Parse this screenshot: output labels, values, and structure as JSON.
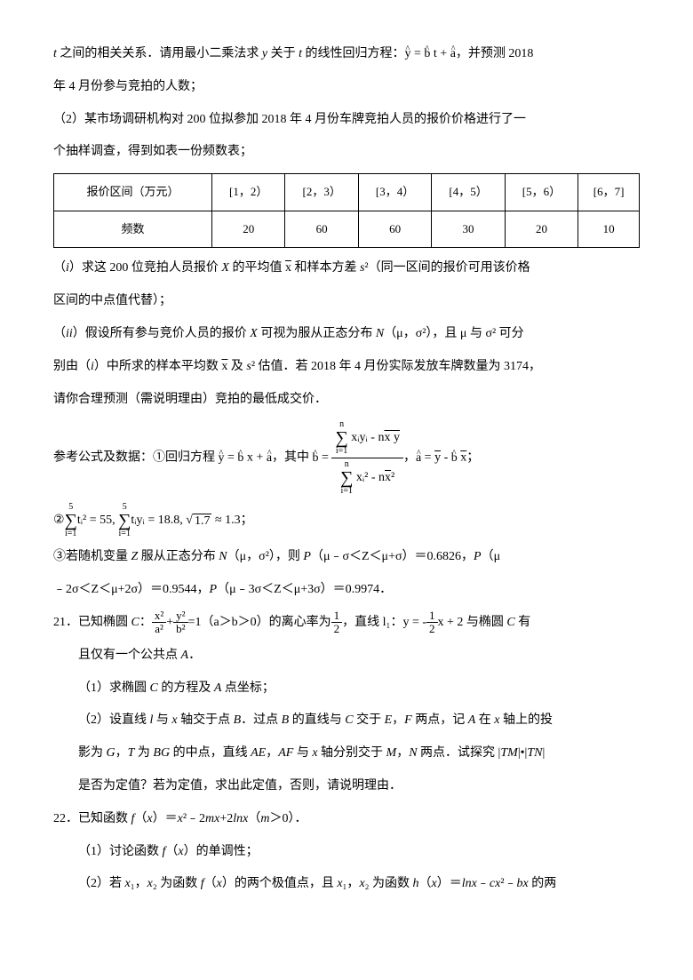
{
  "p1_a": "t",
  "p1_b": " 之间的相关关系．请用最小二乘法求 ",
  "p1_c": "y",
  "p1_d": " 关于 ",
  "p1_e": "t",
  "p1_f": " 的线性回归方程：",
  "p1_eq": "y = b t + a",
  "p1_g": "，并预测 2018",
  "p2": "年 4 月份参与竞拍的人数；",
  "p3": "（2）某市场调研机构对 200 位拟参加 2018 年 4 月份车牌竞拍人员的报价价格进行了一",
  "p4": "个抽样调查，得到如表一份频数表；",
  "table": {
    "r1": [
      "报价区间（万元）",
      "[1，2）",
      "[2，3）",
      "[3，4）",
      "[4，5）",
      "[5，6）",
      "[6，7]"
    ],
    "r2": [
      "频数",
      "20",
      "60",
      "60",
      "30",
      "20",
      "10"
    ]
  },
  "p5a": "（",
  "p5b": "i",
  "p5c": "）求这 200 位竞拍人员报价 ",
  "p5d": "X",
  "p5e": " 的平均值 ",
  "p5f": "x",
  "p5g": " 和样本方差 ",
  "p5h": "s",
  "p5i": "²（同一区间的报价可用该价格",
  "p6": "区间的中点值代替）；",
  "p7a": "（",
  "p7b": "ii",
  "p7c": "）假设所有参与竞价人员的报价 ",
  "p7d": "X",
  "p7e": " 可视为服从正态分布 ",
  "p7f": "N",
  "p7g": "（μ，σ²），且 μ 与 σ² 可分",
  "p8a": "别由（",
  "p8b": "i",
  "p8c": "）中所求的样本平均数 ",
  "p8d": "x",
  "p8e": " 及 ",
  "p8f": "s",
  "p8g": "² 估值．若 2018 年 4 月份实际发放车牌数量为 3174，",
  "p9": "请你合理预测（需说明理由）竞拍的最低成交价．",
  "p10a": "参考公式及数据：①回归方程 ",
  "p10eq1": "y = b x + a",
  "p10b": "，其中 ",
  "p10eq2_top_sigma_top": "n",
  "p10eq2_top_sigma_bot": "i=1",
  "p10eq2_top_body": "xᵢyᵢ - n",
  "p10eq2_top_xy": "x y",
  "p10eq2_bot_sigma_top": "n",
  "p10eq2_bot_sigma_bot": "i=1",
  "p10eq2_bot_body": "xᵢ² - n",
  "p10eq2_bot_x": "x",
  "p10eq2_bot_sq": "²",
  "p10eq2_lhs": "b =",
  "p10c": "，",
  "p10eq3": "a = y - b x",
  "p10d": "；",
  "p11_lhs": "②",
  "p11_s1_top": "5",
  "p11_s1_bot": "i=1",
  "p11_s1_body": "tᵢ² = 55,",
  "p11_s2_top": "5",
  "p11_s2_bot": "i=1",
  "p11_s2_body": "tᵢyᵢ = 18.8,",
  "p11_sqrt_pre": "√",
  "p11_sqrt": "1.7",
  "p11_approx": " ≈ 1.3；",
  "p12a": "③若随机变量 ",
  "p12b": "Z",
  "p12c": " 服从正态分布 ",
  "p12d": "N",
  "p12e": "（μ，σ²），则 ",
  "p12f": "P",
  "p12g": "（μ﹣σ＜Z＜μ+σ）＝0.6826，",
  "p12h": "P",
  "p12i": "（μ",
  "p13a": "﹣2σ＜Z＜μ+2σ）＝0.9544，",
  "p13b": "P",
  "p13c": "（μ﹣3σ＜Z＜μ+3σ）＝0.9974．",
  "q21a": "21．已知椭圆 ",
  "q21b": "C",
  "q21c": "：",
  "q21_f1n": "x²",
  "q21_f1d": "a²",
  "q21_plus": "+",
  "q21_f2n": "y²",
  "q21_f2d": "b²",
  "q21_eq": "=1（a＞b＞0）的离心率为",
  "q21_f3n": "1",
  "q21_f3d": "2",
  "q21d": "，直线 l₁：y = -",
  "q21_f4n": "1",
  "q21_f4d": "2",
  "q21e": "x + 2 与椭圆 ",
  "q21f": "C",
  "q21g": " 有",
  "q21h": "且仅有一个公共点 ",
  "q21i": "A",
  "q21j": "．",
  "q21_1a": "（1）求椭圆 ",
  "q21_1b": "C",
  "q21_1c": " 的方程及 ",
  "q21_1d": "A",
  "q21_1e": " 点坐标；",
  "q21_2a": "（2）设直线 ",
  "q21_2b": "l",
  "q21_2c": " 与 ",
  "q21_2d": "x",
  "q21_2e": " 轴交于点 ",
  "q21_2f": "B",
  "q21_2g": "．过点 ",
  "q21_2h": "B",
  "q21_2i": " 的直线与 ",
  "q21_2j": "C",
  "q21_2k": " 交于 ",
  "q21_2l": "E",
  "q21_2m": "，",
  "q21_2n": "F",
  "q21_2o": " 两点，记 ",
  "q21_2p": "A",
  "q21_2q": " 在 ",
  "q21_2r": "x",
  "q21_2s": " 轴上的投",
  "q21_3a": "影为 ",
  "q21_3b": "G",
  "q21_3c": "，",
  "q21_3d": "T",
  "q21_3e": " 为 ",
  "q21_3f": "BG",
  "q21_3g": " 的中点，直线 ",
  "q21_3h": "AE",
  "q21_3i": "，",
  "q21_3j": "AF",
  "q21_3k": " 与 ",
  "q21_3l": "x",
  "q21_3m": " 轴分别交于 ",
  "q21_3n": "M",
  "q21_3o": "，",
  "q21_3p": "N",
  "q21_3q": " 两点．试探究 |",
  "q21_3r": "TM",
  "q21_3s": "|•|",
  "q21_3t": "TN",
  "q21_3u": "|",
  "q21_4": "是否为定值？若为定值，求出此定值，否则，请说明理由．",
  "q22a": "22．已知函数 ",
  "q22b": "f",
  "q22c": "（",
  "q22d": "x",
  "q22e": "）＝",
  "q22f": "x",
  "q22g": "²﹣2",
  "q22h": "mx",
  "q22i": "+2",
  "q22j": "lnx",
  "q22k": "（",
  "q22l": "m",
  "q22m": "＞0）．",
  "q22_1a": "（1）讨论函数 ",
  "q22_1b": "f",
  "q22_1c": "（",
  "q22_1d": "x",
  "q22_1e": "）的单调性；",
  "q22_2a": "（2）若 ",
  "q22_2b": "x",
  "q22_2c": "₁，",
  "q22_2d": "x",
  "q22_2e": "₂ 为函数 ",
  "q22_2f": "f",
  "q22_2g": "（",
  "q22_2h": "x",
  "q22_2i": "）的两个极值点，且 ",
  "q22_2j": "x",
  "q22_2k": "₁，",
  "q22_2l": "x",
  "q22_2m": "₂ 为函数 ",
  "q22_2n": "h",
  "q22_2o": "（",
  "q22_2p": "x",
  "q22_2q": "）＝",
  "q22_2r": "lnx",
  "q22_2s": "﹣",
  "q22_2t": "cx",
  "q22_2u": "²﹣",
  "q22_2v": "bx",
  "q22_2w": " 的两"
}
